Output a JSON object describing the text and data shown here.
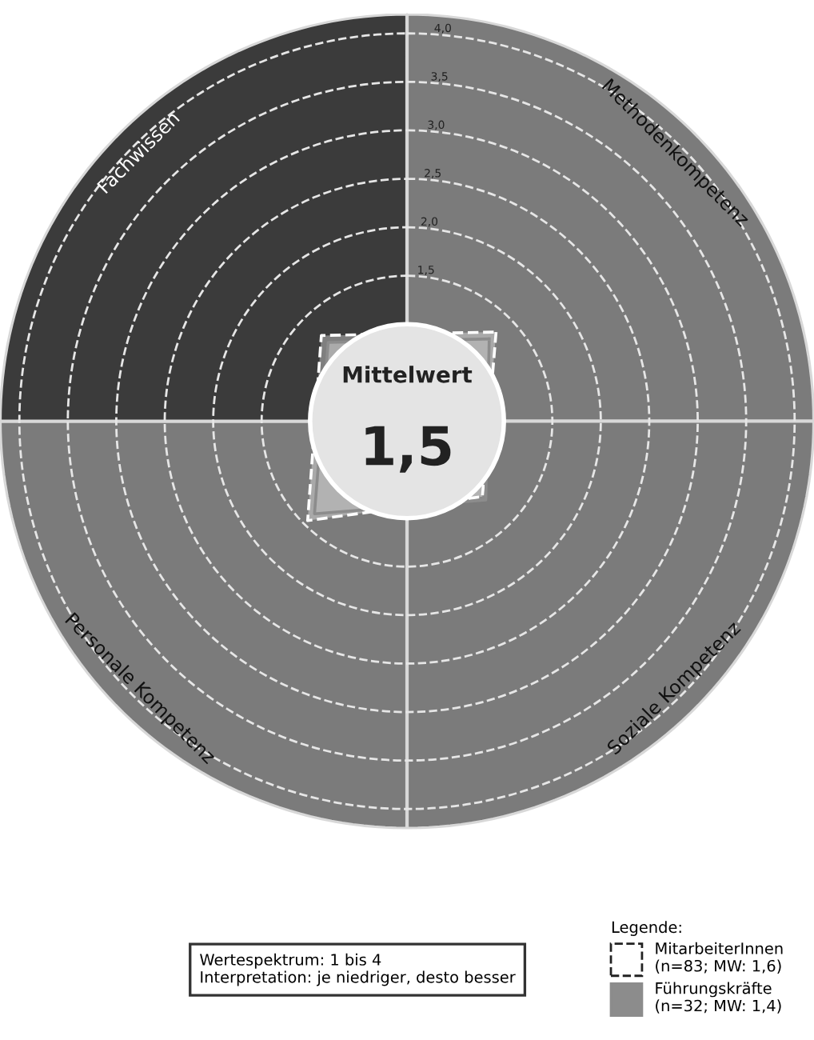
{
  "chart_data": {
    "type": "radar",
    "categories": [
      "Methodenkompetenz",
      "Soziale Kompetenz",
      "Personale Kompetenz",
      "Fachwissen"
    ],
    "series": [
      {
        "name": "MitarbeiterInnen\n(n=83; MW: 1,6)",
        "color": "#ffffff",
        "line_style": "dashed",
        "values": [
          1.3,
          1.1,
          1.45,
          1.25
        ]
      },
      {
        "name": "Führungskräfte\n(n=32; MW: 1,4)",
        "color": "#8c8c8c",
        "line_style": "solid",
        "values": [
          1.2,
          1.15,
          1.35,
          1.15
        ]
      }
    ],
    "ylim": [
      0,
      4.2
    ],
    "yticks": [
      {
        "value": 1.5,
        "label": "1,5"
      },
      {
        "value": 2.0,
        "label": "2,0"
      },
      {
        "value": 2.5,
        "label": "2,5"
      },
      {
        "value": 3.0,
        "label": "3,0"
      },
      {
        "value": 3.5,
        "label": "3,5"
      },
      {
        "value": 4.0,
        "label": "4,0"
      }
    ],
    "grid": true,
    "legend": "bottom right",
    "legend_title": "Legende:",
    "annotations": [
      "Mittelwert",
      "1,5",
      "Wertespektrum: 1 bis 4\nInterpretation: je niedriger, desto besser"
    ]
  }
}
